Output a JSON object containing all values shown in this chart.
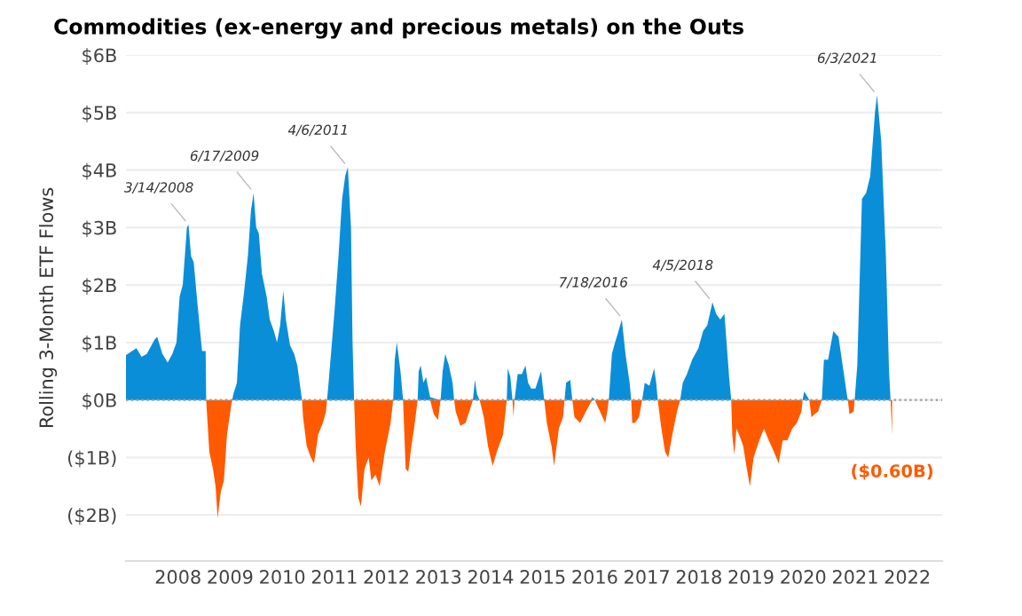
{
  "chart_data": {
    "type": "area",
    "title": "Commodities (ex-energy and precious metals) on the Outs",
    "ylabel": "Rolling 3-Month ETF Flows",
    "series": [
      {
        "color": "#0b8ed8",
        "x": [
          2007.0,
          2007.2,
          2007.3,
          2007.4,
          2007.55,
          2007.6,
          2007.7,
          2007.8,
          2007.89,
          2007.97,
          2008.03,
          2008.09,
          2008.17,
          2008.2,
          2008.25,
          2008.3,
          2008.37,
          2008.46,
          2008.53,
          2008.54,
          2009.04,
          2009.06,
          2009.13,
          2009.19,
          2009.27,
          2009.34,
          2009.4,
          2009.45,
          2009.5,
          2009.55,
          2009.61,
          2009.7,
          2009.76,
          2009.84,
          2009.9,
          2009.96,
          2010.02,
          2010.07,
          2010.15,
          2010.23,
          2010.29,
          2010.38,
          2010.86,
          2010.89,
          2011.0,
          2011.08,
          2011.15,
          2011.21,
          2011.26,
          2011.32,
          2011.35,
          2011.38,
          2012.13,
          2012.16,
          2012.2,
          2012.27,
          2012.32,
          2012.6,
          2012.62,
          2012.66,
          2012.71,
          2012.76,
          2012.84,
          2013.04,
          2013.08,
          2013.13,
          2013.2,
          2013.27,
          2013.3,
          2013.66,
          2013.7,
          2013.74,
          2013.79,
          2014.31,
          2014.33,
          2014.38,
          2014.42,
          2014.46,
          2014.52,
          2014.6,
          2014.67,
          2014.72,
          2014.78,
          2014.8,
          2014.86,
          2014.97,
          2015.03,
          2015.42,
          2015.45,
          2015.53,
          2015.57,
          2015.92,
          2015.96,
          2016.0,
          2016.27,
          2016.33,
          2016.39,
          2016.44,
          2016.52,
          2016.59,
          2016.67,
          2016.7,
          2016.91,
          2016.96,
          2017.05,
          2017.14,
          2017.18,
          2017.21,
          2017.64,
          2017.69,
          2017.77,
          2017.87,
          2017.99,
          2018.08,
          2018.16,
          2018.26,
          2018.33,
          2018.41,
          2018.49,
          2018.58,
          2018.62,
          2019.99,
          2020.02,
          2020.09,
          2020.12,
          2020.36,
          2020.4,
          2020.48,
          2020.58,
          2020.68,
          2020.76,
          2020.84,
          2020.86,
          2020.99,
          2021.04,
          2021.13,
          2021.21,
          2021.29,
          2021.38,
          2021.42,
          2021.5,
          2021.59,
          2021.65,
          2021.68
        ],
        "values": [
          0.78,
          0.9,
          0.75,
          0.8,
          1.05,
          1.1,
          0.8,
          0.65,
          0.8,
          1.0,
          1.8,
          2.0,
          3.0,
          3.05,
          2.5,
          2.4,
          1.7,
          0.85,
          0.85,
          0,
          0,
          0.1,
          0.3,
          1.3,
          1.9,
          2.5,
          3.3,
          3.6,
          3.0,
          2.9,
          2.2,
          1.8,
          1.4,
          1.2,
          1.0,
          1.3,
          1.9,
          1.4,
          0.95,
          0.8,
          0.6,
          0,
          0,
          0.3,
          1.5,
          2.5,
          3.5,
          3.9,
          4.05,
          3.0,
          1.0,
          0,
          0,
          0.7,
          1.0,
          0.5,
          0,
          0,
          0.5,
          0.6,
          0.3,
          0.4,
          0.05,
          0,
          0.5,
          0.8,
          0.6,
          0.3,
          0,
          0,
          0.35,
          0.1,
          0,
          0,
          0.55,
          0.4,
          0,
          0,
          0.45,
          0.45,
          0.6,
          0.3,
          0.2,
          0.2,
          0.2,
          0.5,
          0,
          0,
          0.3,
          0.35,
          0,
          0,
          0.05,
          0,
          0,
          0.8,
          1.0,
          1.15,
          1.4,
          0.8,
          0.3,
          0,
          0,
          0.3,
          0.25,
          0.55,
          0.3,
          0,
          0,
          0.3,
          0.45,
          0.7,
          0.9,
          1.2,
          1.3,
          1.7,
          1.5,
          1.4,
          1.5,
          0.4,
          0,
          0,
          0.15,
          0.05,
          0,
          0,
          0.7,
          0.7,
          1.2,
          1.1,
          0.6,
          0.1,
          0,
          0,
          0.6,
          3.5,
          3.6,
          3.9,
          5.0,
          5.3,
          4.5,
          2.5,
          0.5,
          0
        ]
      },
      {
        "color": "#ff5a00",
        "x": [
          2008.54,
          2008.56,
          2008.6,
          2008.67,
          2008.72,
          2008.76,
          2008.82,
          2008.88,
          2008.94,
          2009.02,
          2009.04,
          2010.38,
          2010.4,
          2010.47,
          2010.55,
          2010.61,
          2010.69,
          2010.78,
          2010.84,
          2010.86,
          2011.38,
          2011.41,
          2011.46,
          2011.51,
          2011.58,
          2011.66,
          2011.71,
          2011.79,
          2011.87,
          2011.97,
          2012.08,
          2012.13,
          2012.32,
          2012.37,
          2012.42,
          2012.48,
          2012.53,
          2012.6,
          2012.84,
          2012.91,
          2012.99,
          2013.04,
          2013.3,
          2013.33,
          2013.42,
          2013.52,
          2013.61,
          2013.66,
          2013.79,
          2013.87,
          2013.95,
          2014.04,
          2014.12,
          2014.24,
          2014.31,
          2014.42,
          2014.44,
          2014.46,
          2015.03,
          2015.08,
          2015.17,
          2015.22,
          2015.31,
          2015.39,
          2015.42,
          2015.57,
          2015.61,
          2015.72,
          2015.83,
          2015.92,
          2015.96,
          2016.0,
          2016.1,
          2016.2,
          2016.24,
          2016.27,
          2016.7,
          2016.72,
          2016.77,
          2016.85,
          2016.91,
          2017.21,
          2017.28,
          2017.35,
          2017.41,
          2017.49,
          2017.58,
          2017.64,
          2018.62,
          2018.64,
          2018.68,
          2018.72,
          2018.77,
          2018.85,
          2018.92,
          2018.98,
          2019.05,
          2019.16,
          2019.25,
          2019.34,
          2019.44,
          2019.53,
          2019.61,
          2019.7,
          2019.79,
          2019.88,
          2019.97,
          2019.99,
          2020.12,
          2020.16,
          2020.22,
          2020.29,
          2020.36,
          2020.86,
          2020.89,
          2020.97,
          2020.99,
          2021.68,
          2021.71
        ],
        "values": [
          0,
          -0.3,
          -0.9,
          -1.2,
          -1.5,
          -2.05,
          -1.6,
          -1.4,
          -0.6,
          -0.1,
          0,
          0,
          -0.3,
          -0.8,
          -1.0,
          -1.1,
          -0.6,
          -0.4,
          -0.2,
          0,
          0,
          -0.8,
          -1.7,
          -1.85,
          -1.2,
          -1.0,
          -1.4,
          -1.3,
          -1.5,
          -0.9,
          -0.4,
          0,
          0,
          -1.2,
          -1.25,
          -0.8,
          -0.5,
          0,
          0,
          -0.25,
          -0.35,
          0,
          0,
          -0.2,
          -0.45,
          -0.4,
          -0.15,
          0,
          0,
          -0.3,
          -0.8,
          -1.15,
          -0.9,
          -0.6,
          0,
          0,
          -0.3,
          0,
          0,
          -0.4,
          -0.8,
          -1.15,
          -0.5,
          -0.3,
          0,
          0,
          -0.3,
          -0.4,
          -0.2,
          -0.05,
          0,
          0,
          -0.2,
          -0.4,
          -0.2,
          0,
          0,
          -0.4,
          -0.4,
          -0.3,
          0,
          0,
          -0.5,
          -0.9,
          -1.0,
          -0.6,
          -0.2,
          0,
          0,
          -0.6,
          -0.95,
          -0.5,
          -0.6,
          -0.8,
          -1.2,
          -1.5,
          -1.0,
          -0.7,
          -0.5,
          -0.7,
          -0.9,
          -1.1,
          -0.7,
          -0.7,
          -0.5,
          -0.4,
          -0.2,
          0,
          0,
          -0.3,
          -0.25,
          -0.2,
          0,
          0,
          -0.25,
          -0.2,
          0,
          0,
          -0.6
        ]
      }
    ],
    "xlim": [
      2007.0,
      2022.67
    ],
    "xticks": [
      2008,
      2009,
      2010,
      2011,
      2012,
      2013,
      2014,
      2015,
      2016,
      2017,
      2018,
      2019,
      2020,
      2021,
      2022
    ],
    "ylim": [
      -2.8,
      6
    ],
    "yticks": [
      {
        "value": -2,
        "label": "($2B)"
      },
      {
        "value": -1,
        "label": "($1B)"
      },
      {
        "value": 0,
        "label": "$0B"
      },
      {
        "value": 1,
        "label": "$1B"
      },
      {
        "value": 2,
        "label": "$2B"
      },
      {
        "value": 3,
        "label": "$3B"
      },
      {
        "value": 4,
        "label": "$4B"
      },
      {
        "value": 5,
        "label": "$5B"
      },
      {
        "value": 6,
        "label": "$6B"
      }
    ],
    "grid": "y",
    "ref_lines": [
      {
        "axis": "y",
        "value": 0,
        "color": "#999999",
        "line_style": "dotted"
      }
    ],
    "annotations": [
      {
        "text": "3/14/2008",
        "x": 2008.2,
        "y": 3.05
      },
      {
        "text": "6/17/2009",
        "x": 2009.46,
        "y": 3.6
      },
      {
        "text": "4/6/2011",
        "x": 2011.26,
        "y": 4.05
      },
      {
        "text": "7/18/2016",
        "x": 2016.54,
        "y": 1.4
      },
      {
        "text": "4/5/2018",
        "x": 2018.26,
        "y": 1.7
      },
      {
        "text": "6/3/2021",
        "x": 2021.42,
        "y": 5.3
      },
      {
        "text": "($0.60B)",
        "x": 2021.71,
        "y": -0.6
      }
    ]
  }
}
